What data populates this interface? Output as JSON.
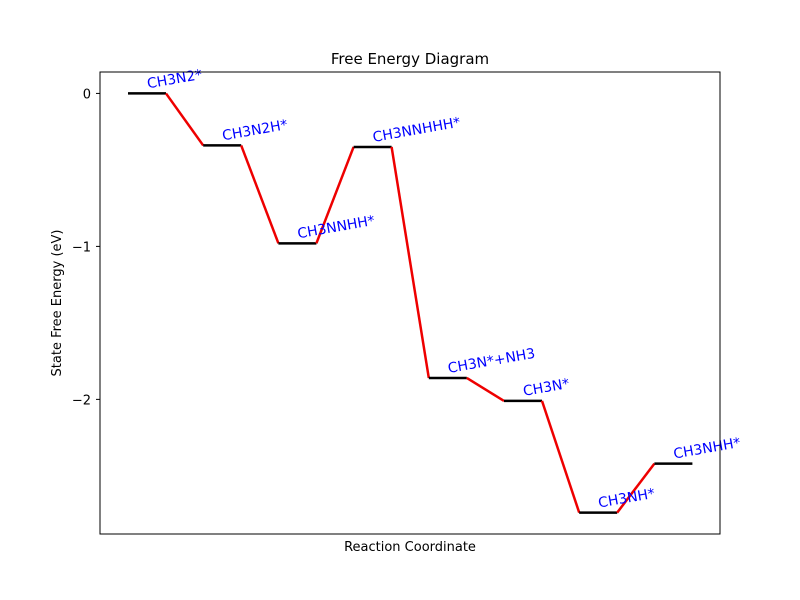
{
  "chart_data": {
    "type": "line",
    "title": "Free Energy Diagram",
    "xlabel": "Reaction Coordinate",
    "ylabel": "State Free Energy (eV)",
    "ylim": [
      -2.88,
      0.14
    ],
    "yticks": [
      0,
      -1,
      -2
    ],
    "ytick_labels": [
      "0",
      "−1",
      "−2"
    ],
    "grid": false,
    "states": [
      {
        "label": "CH3N2*",
        "energy": 0.0
      },
      {
        "label": "CH3N2H*",
        "energy": -0.34
      },
      {
        "label": "CH3NNHH*",
        "energy": -0.98
      },
      {
        "label": "CH3NNHHH*",
        "energy": -0.35
      },
      {
        "label": "CH3N*+NH3",
        "energy": -1.86
      },
      {
        "label": "CH3N*",
        "energy": -2.01
      },
      {
        "label": "CH3NH*",
        "energy": -2.74
      },
      {
        "label": "CH3NHH*",
        "energy": -2.42
      }
    ],
    "colors": {
      "level": "#000000",
      "connector": "#ee0000",
      "label": "#0000ff"
    }
  }
}
